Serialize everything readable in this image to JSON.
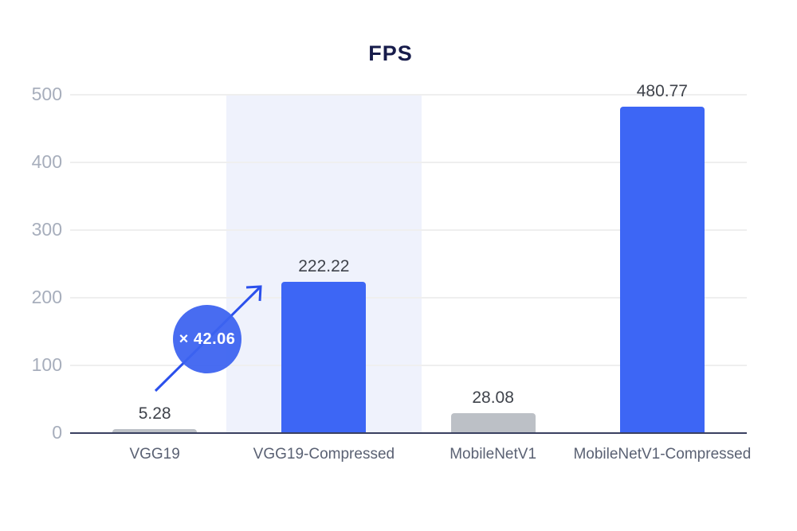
{
  "title": "FPS",
  "chart_data": {
    "type": "bar",
    "title": "FPS",
    "categories": [
      "VGG19",
      "VGG19-Compressed",
      "MobileNetV1",
      "MobileNetV1-Compressed"
    ],
    "values": [
      5.28,
      222.22,
      28.08,
      480.77
    ],
    "value_labels": [
      "5.28",
      "222.22",
      "28.08",
      "480.77"
    ],
    "yticks": [
      0,
      100,
      200,
      300,
      400,
      500
    ],
    "ytick_labels": [
      "0",
      "100",
      "200",
      "300",
      "400",
      "500"
    ],
    "ylim": [
      0,
      500
    ],
    "xlabel": "",
    "ylabel": "",
    "grid": true,
    "legend": "none",
    "highlight_category": "VGG19-Compressed",
    "highlight_index": 1,
    "annotation": {
      "label": "× 42.06",
      "meaning": "speedup from VGG19 to VGG19-Compressed"
    }
  },
  "colors": {
    "bar_blue": "#3D66F5",
    "bar_gray": "#BCC0C6",
    "bar_colors": [
      "#BCC0C6",
      "#3D66F5",
      "#BCC0C6",
      "#3D66F5"
    ],
    "highlight_band": "#EFF2FC",
    "gridline": "#EFEFEF",
    "axis_line": "#3A4060",
    "title_text": "#171C4B",
    "ytick_text": "#A7AEBC",
    "xlabel_text": "#5A6173",
    "value_text": "#3F434B",
    "arrow_blue": "#2B50EC",
    "badge_fill": "#3D63F0",
    "badge_text": "#FFFFFF"
  }
}
